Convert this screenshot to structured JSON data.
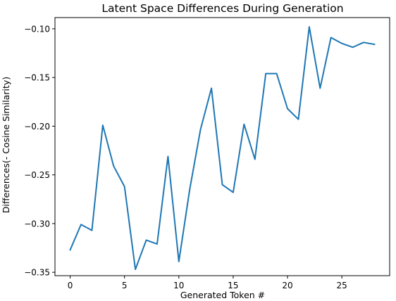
{
  "chart_data": {
    "type": "line",
    "title": "Latent Space Differences During Generation",
    "xlabel": "Generated Token #",
    "ylabel": "Differences(- Cosine Similarity)",
    "xlim": [
      -1.4,
      29.4
    ],
    "ylim": [
      -0.3535,
      -0.0885
    ],
    "xticks": [
      0,
      5,
      10,
      15,
      20,
      25
    ],
    "xtick_labels": [
      "0",
      "5",
      "10",
      "15",
      "20",
      "25"
    ],
    "yticks": [
      -0.35,
      -0.3,
      -0.25,
      -0.2,
      -0.15,
      -0.1
    ],
    "ytick_labels": [
      "−0.35",
      "−0.30",
      "−0.25",
      "−0.20",
      "−0.15",
      "−0.10"
    ],
    "grid": false,
    "legend": "none",
    "series": [
      {
        "color": "#1f77b4",
        "x": [
          0,
          1,
          2,
          3,
          4,
          5,
          6,
          7,
          8,
          9,
          10,
          11,
          12,
          13,
          14,
          15,
          16,
          17,
          18,
          19,
          20,
          21,
          22,
          23,
          24,
          25,
          26,
          27,
          28
        ],
        "y": [
          -0.327,
          -0.301,
          -0.307,
          -0.199,
          -0.241,
          -0.262,
          -0.347,
          -0.317,
          -0.321,
          -0.231,
          -0.339,
          -0.265,
          -0.203,
          -0.161,
          -0.26,
          -0.268,
          -0.198,
          -0.234,
          -0.146,
          -0.146,
          -0.182,
          -0.193,
          -0.098,
          -0.161,
          -0.109,
          -0.115,
          -0.119,
          -0.114,
          -0.116
        ]
      }
    ]
  }
}
